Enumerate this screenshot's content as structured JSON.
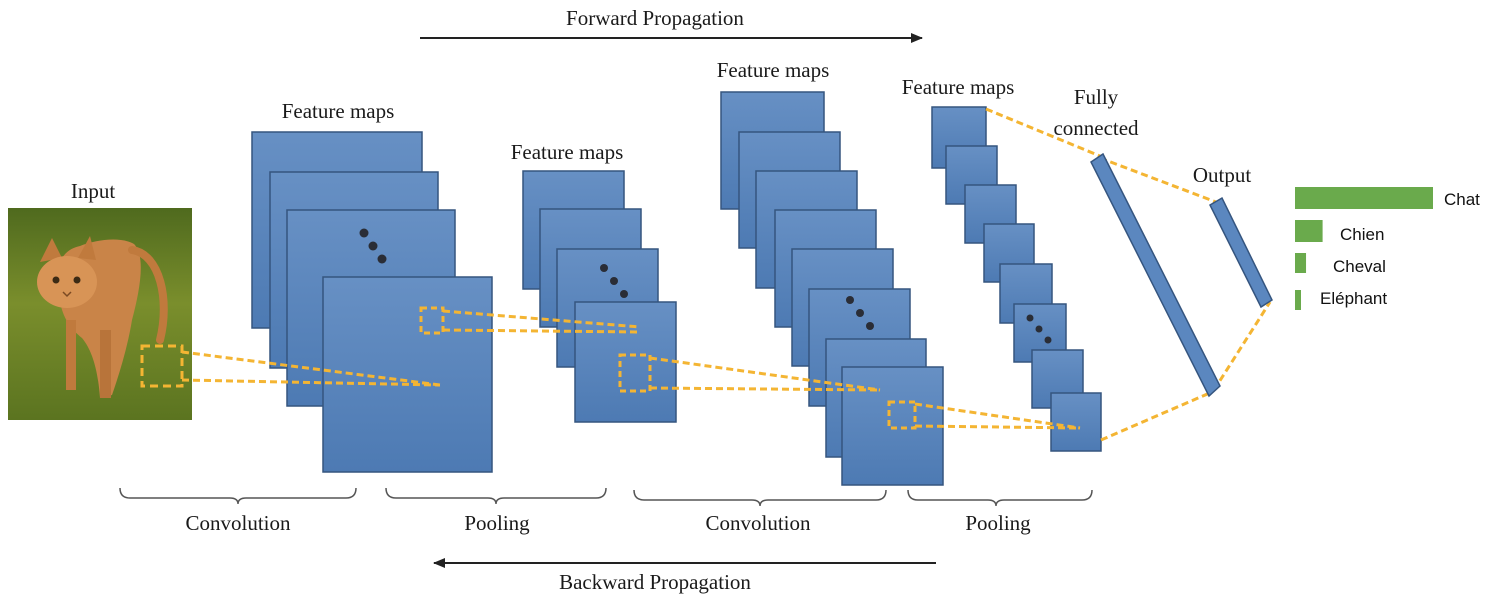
{
  "arrows": {
    "forward_label": "Forward  Propagation",
    "backward_label": "Backward  Propagation"
  },
  "labels": {
    "input": "Input",
    "conv1_maps": "Feature maps",
    "pool1_maps": "Feature maps",
    "conv2_maps": "Feature maps",
    "pool2_maps": "Feature maps",
    "fully_connected_line1": "Fully",
    "fully_connected_line2": "connected",
    "output": "Output"
  },
  "stages": [
    "Convolution",
    "Pooling",
    "Convolution",
    "Pooling"
  ],
  "output_classes": [
    {
      "label": "Chat",
      "score": 1.0
    },
    {
      "label": "Chien",
      "score": 0.2
    },
    {
      "label": "Cheval",
      "score": 0.08
    },
    {
      "label": "Eléphant",
      "score": 0.04
    }
  ],
  "colors": {
    "map_fill": "#5b87bf",
    "map_stroke": "#35557f",
    "receptive_field": "#f4b533",
    "output_bar": "#6aaa4c",
    "arrow": "#222222"
  },
  "input_image": {
    "icon": "cat-photo"
  }
}
